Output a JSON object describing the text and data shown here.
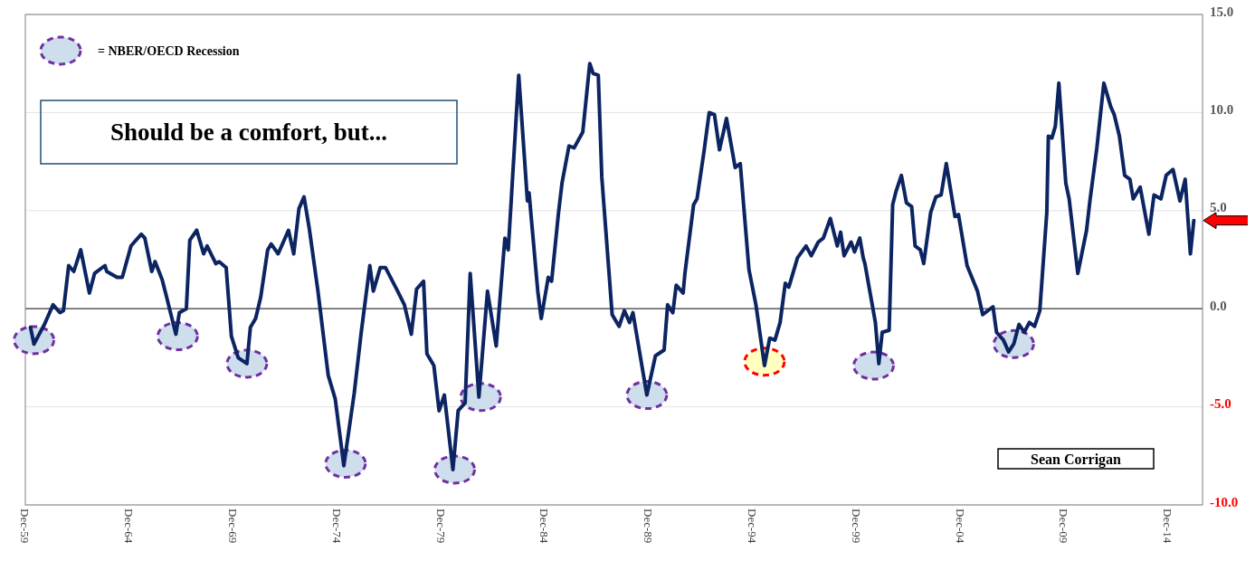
{
  "chart_data": {
    "type": "line",
    "x": [
      "1960-03",
      "1960-05",
      "1960-08",
      "1960-11",
      "1961-04",
      "1961-08",
      "1961-10",
      "1962-01",
      "1962-04",
      "1962-08",
      "1963-01",
      "1963-04",
      "1963-10",
      "1963-11",
      "1964-05",
      "1964-08",
      "1965-01",
      "1965-03",
      "1965-07",
      "1965-09",
      "1966-01",
      "1966-03",
      "1966-07",
      "1966-09",
      "1967-03",
      "1967-05",
      "1967-09",
      "1967-11",
      "1968-03",
      "1968-07",
      "1968-09",
      "1969-02",
      "1969-04",
      "1969-08",
      "1969-11",
      "1970-03",
      "1970-08",
      "1970-10",
      "1971-01",
      "1971-04",
      "1971-08",
      "1971-10",
      "1972-02",
      "1972-08",
      "1972-11",
      "1973-02",
      "1973-05",
      "1973-08",
      "1974-01",
      "1974-07",
      "1974-11",
      "1975-04",
      "1975-10",
      "1976-02",
      "1976-07",
      "1976-09",
      "1977-01",
      "1977-04",
      "1977-11",
      "1978-03",
      "1978-07",
      "1978-10",
      "1979-02",
      "1979-04",
      "1979-08",
      "1979-11",
      "1980-02",
      "1980-07",
      "1980-10",
      "1981-02",
      "1981-05",
      "1981-10",
      "1982-03",
      "1982-08",
      "1983-01",
      "1983-03",
      "1983-09",
      "1984-02",
      "1984-03",
      "1984-08",
      "1984-10",
      "1985-02",
      "1985-04",
      "1985-08",
      "1985-10",
      "1986-02",
      "1986-05",
      "1986-10",
      "1987-02",
      "1987-04",
      "1987-07",
      "1987-09",
      "1988-03",
      "1988-07",
      "1988-10",
      "1989-01",
      "1989-03",
      "1989-11",
      "1990-04",
      "1990-09",
      "1990-11",
      "1991-02",
      "1991-04",
      "1991-08",
      "1991-09",
      "1992-02",
      "1992-04",
      "1992-08",
      "1992-11",
      "1993-02",
      "1993-05",
      "1993-09",
      "1994-02",
      "1994-05",
      "1994-10",
      "1995-02",
      "1995-07",
      "1995-10",
      "1996-01",
      "1996-04",
      "1996-07",
      "1996-09",
      "1997-02",
      "1997-07",
      "1997-10",
      "1998-02",
      "1998-05",
      "1998-09",
      "1999-01",
      "1999-03",
      "1999-05",
      "1999-09",
      "1999-11",
      "2000-02",
      "2000-04",
      "2000-05",
      "2000-11",
      "2001-01",
      "2001-03",
      "2001-07",
      "2001-09",
      "2001-11",
      "2002-02",
      "2002-05",
      "2002-08",
      "2002-10",
      "2003-01",
      "2003-03",
      "2003-07",
      "2003-10",
      "2004-01",
      "2004-04",
      "2004-09",
      "2004-11",
      "2005-04",
      "2005-10",
      "2006-01",
      "2006-07",
      "2006-09",
      "2007-01",
      "2007-04",
      "2007-07",
      "2007-10",
      "2008-01",
      "2008-04",
      "2008-07",
      "2008-10",
      "2009-02",
      "2009-03",
      "2009-05",
      "2009-07",
      "2009-09",
      "2010-01",
      "2010-03",
      "2010-08",
      "2011-01",
      "2011-03",
      "2011-07",
      "2011-11",
      "2012-03",
      "2012-05",
      "2012-08",
      "2012-11",
      "2013-02",
      "2013-04",
      "2013-08",
      "2014-01",
      "2014-04",
      "2014-08",
      "2014-11",
      "2015-03",
      "2015-07",
      "2015-10",
      "2016-01",
      "2016-03"
    ],
    "series": [
      {
        "type": "line",
        "color": "#0c2461",
        "values": [
          -0.95,
          -1.8,
          -1.3,
          -0.8,
          0.2,
          -0.2,
          -0.1,
          2.2,
          1.9,
          3.0,
          0.8,
          1.8,
          2.2,
          1.9,
          1.6,
          1.6,
          3.2,
          3.4,
          3.8,
          3.6,
          1.9,
          2.4,
          1.5,
          0.8,
          -1.3,
          -0.2,
          0.0,
          3.5,
          4.0,
          2.8,
          3.2,
          2.3,
          2.4,
          2.1,
          -1.4,
          -2.5,
          -2.8,
          -0.95,
          -0.5,
          0.6,
          3.0,
          3.3,
          2.8,
          4.0,
          2.8,
          5.1,
          5.7,
          4.1,
          0.9,
          -3.4,
          -4.6,
          -8.0,
          -4.3,
          -1.2,
          2.2,
          0.9,
          2.1,
          2.1,
          0.9,
          0.2,
          -1.3,
          1.0,
          1.4,
          -2.3,
          -2.9,
          -5.2,
          -4.4,
          -8.2,
          -5.2,
          -4.8,
          1.8,
          -4.5,
          0.9,
          -1.9,
          3.6,
          3.0,
          11.9,
          5.5,
          5.9,
          0.9,
          -0.5,
          1.6,
          1.4,
          4.9,
          6.4,
          8.3,
          8.2,
          9.0,
          12.5,
          12.0,
          11.9,
          6.7,
          -0.3,
          -0.9,
          -0.1,
          -0.7,
          -0.2,
          -4.4,
          -2.4,
          -2.1,
          0.2,
          -0.2,
          1.2,
          0.8,
          1.8,
          5.3,
          5.6,
          8.0,
          10.0,
          9.9,
          8.1,
          9.7,
          7.2,
          7.4,
          2.0,
          0.2,
          -2.9,
          -1.5,
          -1.6,
          -0.7,
          1.3,
          1.1,
          2.6,
          3.2,
          2.7,
          3.4,
          3.6,
          4.6,
          3.2,
          3.9,
          2.7,
          3.4,
          2.9,
          3.6,
          2.6,
          2.3,
          -0.7,
          -2.8,
          -1.2,
          -1.1,
          5.3,
          6.0,
          6.8,
          5.4,
          5.2,
          3.2,
          3.0,
          2.3,
          4.9,
          5.7,
          5.8,
          7.4,
          4.7,
          4.8,
          2.2,
          0.9,
          -0.3,
          0.1,
          -1.2,
          -1.6,
          -2.2,
          -1.8,
          -0.8,
          -1.2,
          -0.7,
          -0.9,
          -0.1,
          4.9,
          8.8,
          8.7,
          9.3,
          11.5,
          6.4,
          5.6,
          1.8,
          4.0,
          5.5,
          8.2,
          11.5,
          10.3,
          9.9,
          8.8,
          6.8,
          6.6,
          5.6,
          6.2,
          3.8,
          5.8,
          5.6,
          6.8,
          7.1,
          5.5,
          6.6,
          2.8,
          4.5
        ]
      },
      {
        "type": "scatter",
        "name": "= NBER/OECD Recession",
        "color": "#cfdeed",
        "x": [
          "1960-05",
          "1967-04",
          "1970-08",
          "1975-05",
          "1980-08",
          "1981-11",
          "1989-11",
          "1995-07",
          "2000-10",
          "2007-07"
        ],
        "values": [
          -1.6,
          -1.4,
          -2.8,
          -7.9,
          -8.2,
          -4.5,
          -4.4,
          -2.7,
          -2.9,
          -1.8
        ],
        "colors": [
          "#cfdeed",
          "#cfdeed",
          "#cfdeed",
          "#cfdeed",
          "#cfdeed",
          "#cfdeed",
          "#cfdeed",
          "#ffffc0",
          "#cfdeed",
          "#cfdeed"
        ]
      }
    ],
    "xlim": [
      "1959-12",
      "2016-08"
    ],
    "xticks": [
      {
        "value": "1959-12",
        "label": "Dec-59"
      },
      {
        "value": "1964-12",
        "label": "Dec-64"
      },
      {
        "value": "1969-12",
        "label": "Dec-69"
      },
      {
        "value": "1974-12",
        "label": "Dec-74"
      },
      {
        "value": "1979-12",
        "label": "Dec-79"
      },
      {
        "value": "1984-12",
        "label": "Dec-84"
      },
      {
        "value": "1989-12",
        "label": "Dec-89"
      },
      {
        "value": "1994-12",
        "label": "Dec-94"
      },
      {
        "value": "1999-12",
        "label": "Dec-99"
      },
      {
        "value": "2004-12",
        "label": "Dec-04"
      },
      {
        "value": "2009-12",
        "label": "Dec-09"
      },
      {
        "value": "2014-12",
        "label": "Dec-14"
      }
    ],
    "ylim": [
      -10,
      15
    ],
    "yticks": [
      {
        "value": -10,
        "label": "-10.0"
      },
      {
        "value": -5,
        "label": "-5.0"
      },
      {
        "value": 0,
        "label": "0.0"
      },
      {
        "value": 5,
        "label": "5.0"
      },
      {
        "value": 10,
        "label": "10.0"
      },
      {
        "value": 15,
        "label": "15.0"
      }
    ],
    "grid": "y",
    "ref_lines": [
      {
        "axis": "y",
        "value": 0,
        "color": "#404040"
      }
    ],
    "legend": "top left",
    "annotations": [
      "Should be a comfort, but...",
      "Sean Corrigan"
    ]
  }
}
